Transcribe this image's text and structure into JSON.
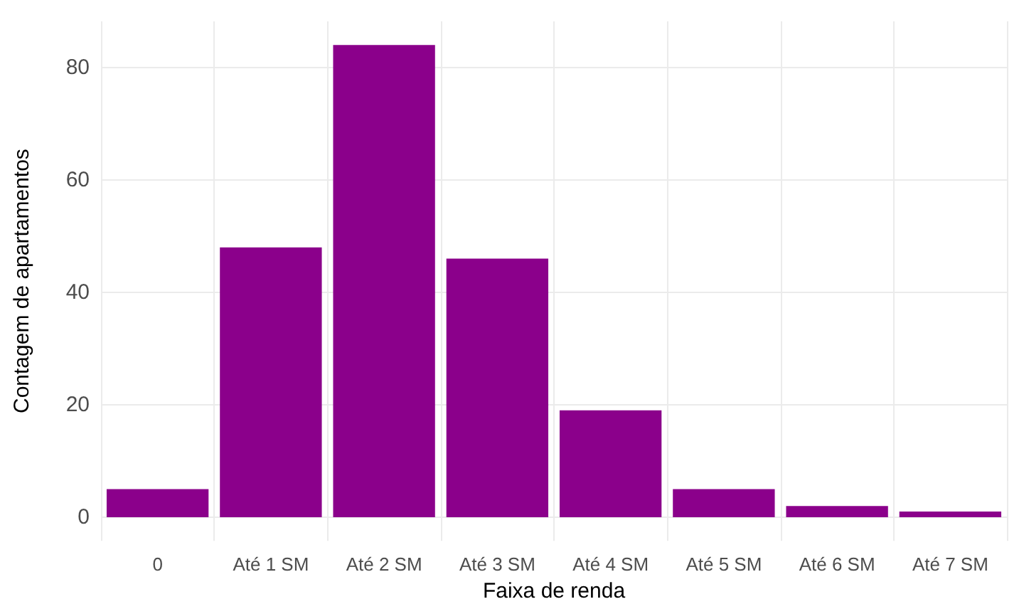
{
  "chart_data": {
    "type": "bar",
    "xlabel": "Faixa de renda",
    "ylabel": "Contagem de apartamentos",
    "categories": [
      "0",
      "Até 1 SM",
      "Até 2 SM",
      "Até 3 SM",
      "Até 4 SM",
      "Até 5 SM",
      "Até 6 SM",
      "Até 7 SM"
    ],
    "values": [
      5,
      48,
      84,
      46,
      19,
      5,
      2,
      1
    ],
    "color": "#8b008b",
    "ylim": [
      -4.2,
      88.2
    ],
    "yticks": [
      0,
      20,
      40,
      60,
      80
    ],
    "grid": true
  }
}
